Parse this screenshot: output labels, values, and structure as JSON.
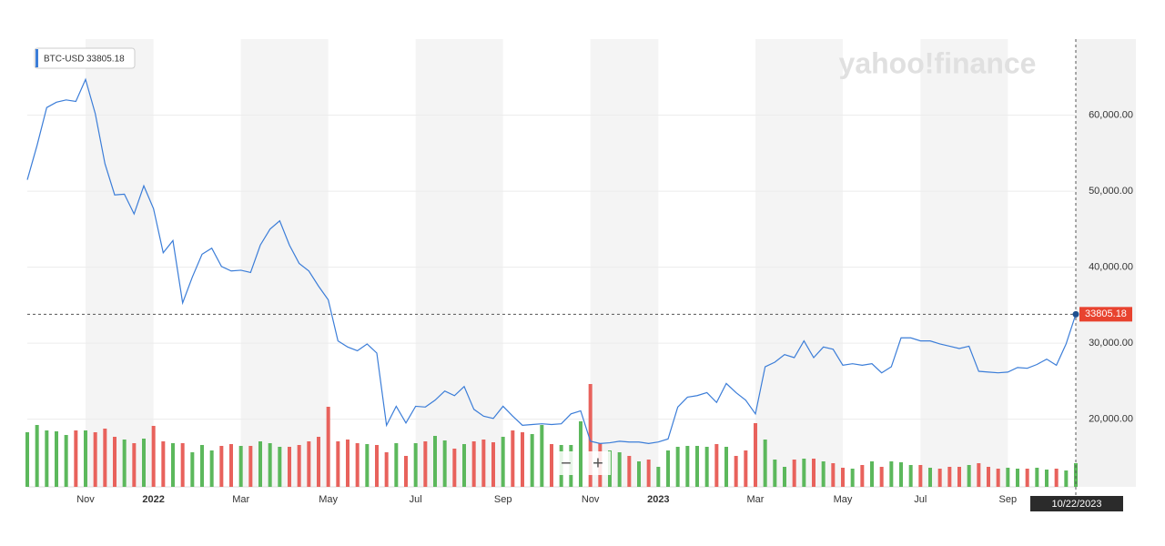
{
  "chart_data": {
    "type": "line",
    "watermark": "yahoo!finance",
    "controls": [
      "−",
      "+"
    ],
    "last_date": "10/22/2023",
    "categories": [
      null,
      null,
      null,
      null,
      null,
      null,
      "Nov",
      null,
      null,
      null,
      null,
      null,
      null,
      "2022",
      null,
      null,
      null,
      null,
      null,
      null,
      null,
      null,
      "Mar",
      null,
      null,
      null,
      null,
      null,
      null,
      null,
      null,
      "May",
      null,
      null,
      null,
      null,
      null,
      null,
      null,
      null,
      "Jul",
      null,
      null,
      null,
      null,
      null,
      null,
      null,
      null,
      "Sep",
      null,
      null,
      null,
      null,
      null,
      null,
      null,
      null,
      "Nov",
      null,
      null,
      null,
      null,
      null,
      null,
      "2023",
      null,
      null,
      null,
      null,
      null,
      null,
      null,
      null,
      null,
      "Mar",
      null,
      null,
      null,
      null,
      null,
      null,
      null,
      null,
      "May",
      null,
      null,
      null,
      null,
      null,
      null,
      null,
      "Jul",
      null,
      null,
      null,
      null,
      null,
      null,
      null,
      null,
      "Sep",
      null,
      null,
      null,
      null,
      null,
      null,
      null
    ],
    "series": [
      {
        "name": "BTC-USD",
        "color": "#3b7dd8",
        "values": [
          51500,
          56000,
          61000,
          61700,
          62000,
          61800,
          64700,
          60200,
          53600,
          49500,
          49600,
          47000,
          50700,
          47700,
          41900,
          43500,
          35300,
          38700,
          41700,
          42500,
          40100,
          39500,
          39600,
          39300,
          42900,
          45000,
          46100,
          42900,
          40500,
          39500,
          37500,
          35700,
          30300,
          29500,
          29000,
          29900,
          28700,
          19200,
          21700,
          19500,
          21700,
          21600,
          22500,
          23700,
          23100,
          24300,
          21300,
          20400,
          20100,
          21700,
          20400,
          19200,
          19300,
          19400,
          19300,
          19400,
          20700,
          21100,
          17100,
          16800,
          16900,
          17100,
          17000,
          17000,
          16800,
          17000,
          17400,
          21600,
          22900,
          23100,
          23500,
          22200,
          24700,
          23500,
          22500,
          20700,
          26900,
          27500,
          28500,
          28100,
          30300,
          28100,
          29500,
          29200,
          27100,
          27300,
          27100,
          27300,
          26100,
          26900,
          30700,
          30700,
          30300,
          30300,
          29900,
          29600,
          29300,
          29600,
          26300,
          26200,
          26100,
          26200,
          26800,
          26700,
          27200,
          27900,
          27100,
          29900,
          33805.18
        ]
      }
    ],
    "volume": {
      "up_color": "#5cb85c",
      "down_color": "#e8625c",
      "values": [
        60,
        68,
        62,
        61,
        57,
        62,
        62,
        60,
        64,
        55,
        52,
        48,
        53,
        67,
        50,
        48,
        48,
        38,
        46,
        40,
        45,
        47,
        45,
        45,
        50,
        48,
        44,
        44,
        46,
        50,
        55,
        88,
        50,
        52,
        48,
        47,
        46,
        38,
        48,
        34,
        48,
        50,
        56,
        51,
        42,
        47,
        50,
        52,
        49,
        55,
        62,
        60,
        58,
        68,
        47,
        46,
        46,
        72,
        113,
        48,
        40,
        38,
        34,
        28,
        30,
        22,
        40,
        44,
        45,
        45,
        44,
        47,
        44,
        34,
        40,
        70,
        52,
        30,
        22,
        30,
        31,
        31,
        28,
        26,
        21,
        20,
        24,
        28,
        22,
        28,
        27,
        24,
        24,
        21,
        20,
        22,
        22,
        24,
        26,
        22,
        20,
        21,
        20,
        20,
        21,
        19,
        20,
        18,
        26
      ]
    },
    "ylim": [
      11100,
      70000
    ],
    "yticks": [
      {
        "value": 20000,
        "label": "20,000.00"
      },
      {
        "value": 30000,
        "label": "30,000.00"
      },
      {
        "value": 40000,
        "label": "40,000.00"
      },
      {
        "value": 50000,
        "label": "50,000.00"
      },
      {
        "value": 60000,
        "label": "60,000.00"
      }
    ],
    "y2lim": [
      0,
      492
    ],
    "grid": true
  }
}
